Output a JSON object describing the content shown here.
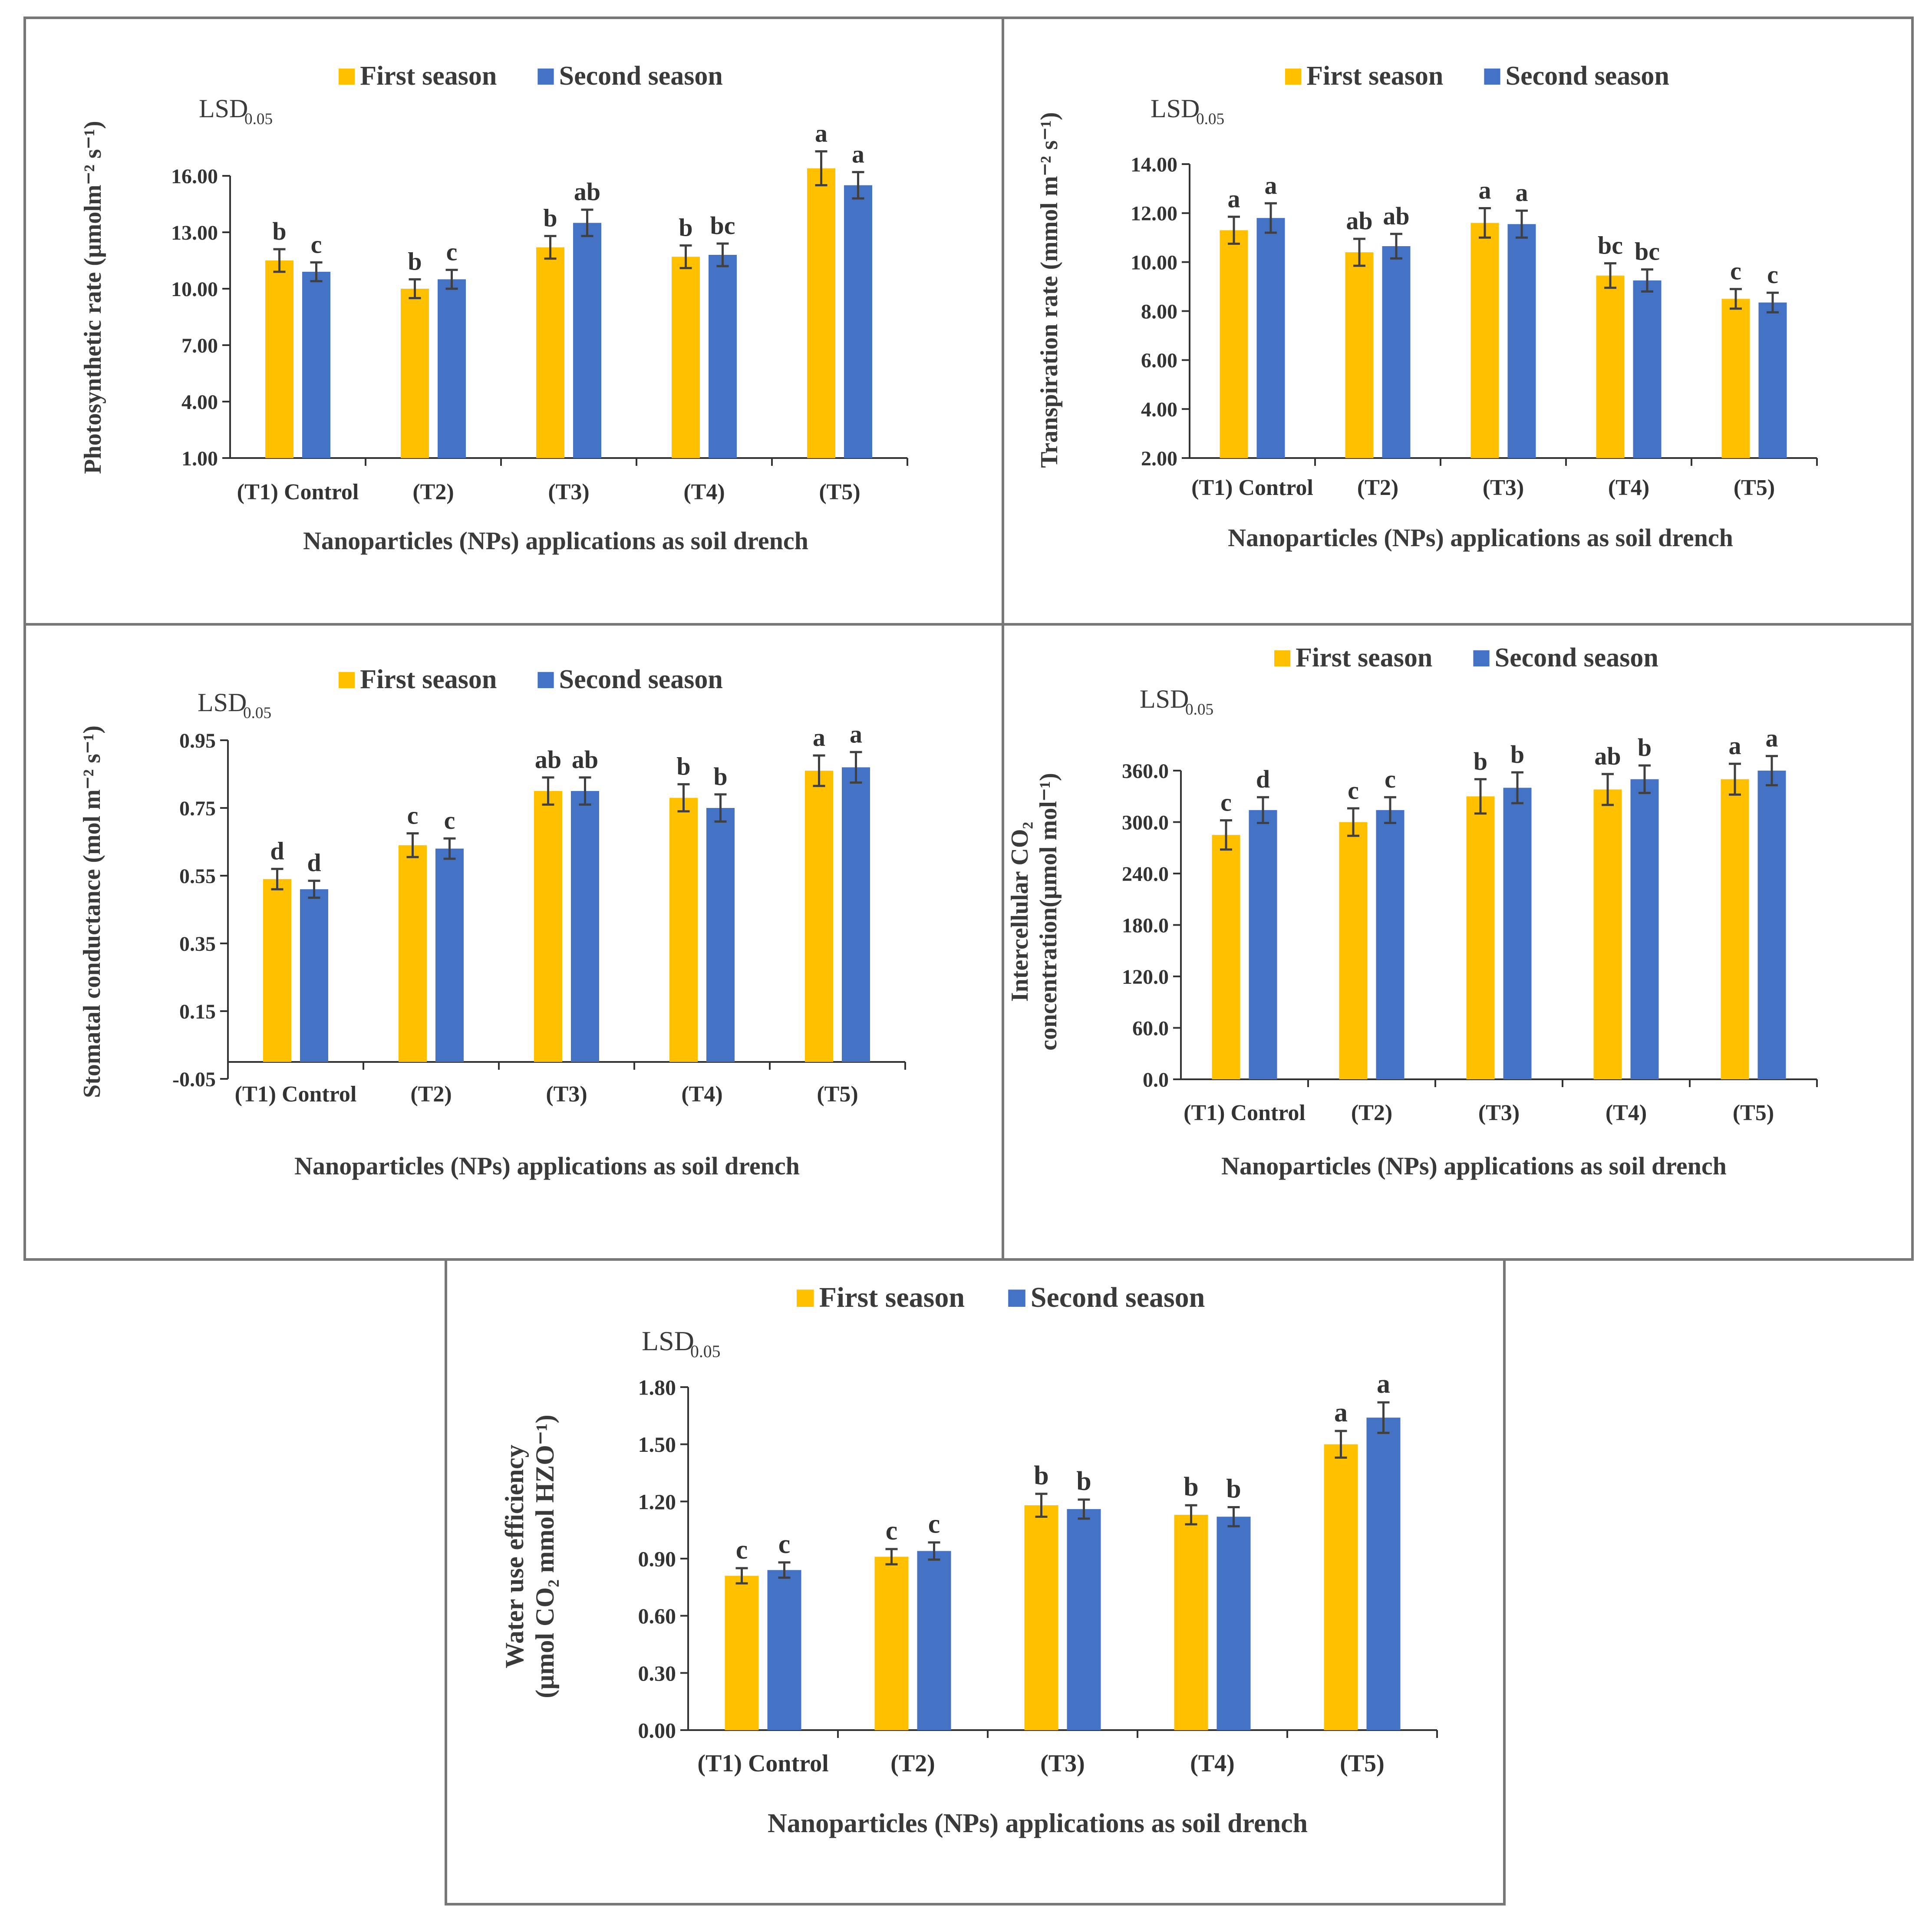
{
  "colors": {
    "first": "#FFC000",
    "second": "#4472C4",
    "axis": "#333333",
    "panel_border": "#777777",
    "errorbar": "#404040"
  },
  "legend": {
    "first": "First season",
    "second": "Second season"
  },
  "lsd": {
    "main": "LSD",
    "sub": "0.05"
  },
  "chart_data": [
    {
      "type": "bar",
      "categories": [
        "(T1) Control",
        "(T2)",
        "(T3)",
        "(T4)",
        "(T5)"
      ],
      "ylabel_lines": [
        "Photosynthetic rate (μmolm⁻² s⁻¹)"
      ],
      "xlabel": "Nanoparticles (NPs) applications  as soil drench",
      "yaxis": {
        "min": 1,
        "max": 16,
        "step": 3,
        "decimals": 2,
        "floor": 1
      },
      "series": [
        {
          "name": "First season",
          "values": [
            11.5,
            10.0,
            12.2,
            11.7,
            16.4
          ],
          "errors": [
            0.6,
            0.5,
            0.6,
            0.6,
            0.9
          ],
          "letters": [
            "b",
            "b",
            "b",
            "b",
            "a"
          ]
        },
        {
          "name": "Second season",
          "values": [
            10.9,
            10.5,
            13.5,
            11.8,
            15.5
          ],
          "errors": [
            0.5,
            0.5,
            0.7,
            0.6,
            0.7
          ],
          "letters": [
            "c",
            "c",
            "ab",
            "bc",
            "a"
          ]
        }
      ]
    },
    {
      "type": "bar",
      "categories": [
        "(T1) Control",
        "(T2)",
        "(T3)",
        "(T4)",
        "(T5)"
      ],
      "ylabel_lines": [
        "Transpiration  rate (mmol m⁻² s⁻¹)"
      ],
      "xlabel": "Nanoparticles (NPs) applications  as soil drench",
      "yaxis": {
        "min": 2,
        "max": 14,
        "step": 2,
        "decimals": 2,
        "floor": 2
      },
      "series": [
        {
          "name": "First season",
          "values": [
            11.3,
            10.4,
            11.6,
            9.45,
            8.5
          ],
          "errors": [
            0.55,
            0.55,
            0.6,
            0.5,
            0.4
          ],
          "letters": [
            "a",
            "ab",
            "a",
            "bc",
            "c"
          ]
        },
        {
          "name": "Second season",
          "values": [
            11.8,
            10.65,
            11.55,
            9.25,
            8.35
          ],
          "errors": [
            0.6,
            0.5,
            0.55,
            0.45,
            0.4
          ],
          "letters": [
            "a",
            "ab",
            "a",
            "bc",
            "c"
          ]
        }
      ]
    },
    {
      "type": "bar",
      "categories": [
        "(T1) Control",
        "(T2)",
        "(T3)",
        "(T4)",
        "(T5)"
      ],
      "ylabel_lines": [
        "Stomatal conductance (mol m⁻² s⁻¹)"
      ],
      "xlabel": "Nanoparticles (NPs) applications  as soil drench",
      "yaxis": {
        "min": -0.05,
        "max": 0.95,
        "step": 0.2,
        "decimals": 2,
        "floor": 0
      },
      "series": [
        {
          "name": "First season",
          "values": [
            0.54,
            0.64,
            0.8,
            0.78,
            0.86
          ],
          "errors": [
            0.03,
            0.035,
            0.04,
            0.04,
            0.045
          ],
          "letters": [
            "d",
            "c",
            "ab",
            "b",
            "a"
          ]
        },
        {
          "name": "Second season",
          "values": [
            0.51,
            0.63,
            0.8,
            0.75,
            0.87
          ],
          "errors": [
            0.025,
            0.03,
            0.04,
            0.04,
            0.045
          ],
          "letters": [
            "d",
            "c",
            "ab",
            "b",
            "a"
          ]
        }
      ]
    },
    {
      "type": "bar",
      "categories": [
        "(T1) Control",
        "(T2)",
        "(T3)",
        "(T4)",
        "(T5)"
      ],
      "ylabel_lines": [
        "Intercellular  CO₂",
        "concentration(μmol mol⁻¹)"
      ],
      "xlabel": "Nanoparticles (NPs) applications  as soil drench",
      "yaxis": {
        "min": 0,
        "max": 360,
        "step": 60,
        "decimals": 1,
        "floor": 0
      },
      "series": [
        {
          "name": "First season",
          "values": [
            285,
            300,
            330,
            338,
            350
          ],
          "errors": [
            17,
            16,
            20,
            18,
            18
          ],
          "letters": [
            "c",
            "c",
            "b",
            "ab",
            "a"
          ]
        },
        {
          "name": "Second season",
          "values": [
            314,
            314,
            340,
            350,
            360
          ],
          "errors": [
            15,
            15,
            18,
            16,
            17
          ],
          "letters": [
            "d",
            "c",
            "b",
            "b",
            "a"
          ]
        }
      ]
    },
    {
      "type": "bar",
      "categories": [
        "(T1) Control",
        "(T2)",
        "(T3)",
        "(T4)",
        "(T5)"
      ],
      "ylabel_lines": [
        "Water use efficiency",
        "(μmol CO₂ mmol HZO⁻¹)"
      ],
      "xlabel": "Nanoparticles (NPs) applications  as soil drench",
      "yaxis": {
        "min": 0,
        "max": 1.8,
        "step": 0.3,
        "decimals": 2,
        "floor": 0
      },
      "series": [
        {
          "name": "First season",
          "values": [
            0.81,
            0.91,
            1.18,
            1.13,
            1.5
          ],
          "errors": [
            0.04,
            0.04,
            0.06,
            0.05,
            0.07
          ],
          "letters": [
            "c",
            "c",
            "b",
            "b",
            "a"
          ]
        },
        {
          "name": "Second season",
          "values": [
            0.84,
            0.94,
            1.16,
            1.12,
            1.64
          ],
          "errors": [
            0.04,
            0.045,
            0.05,
            0.05,
            0.08
          ],
          "letters": [
            "c",
            "c",
            "b",
            "b",
            "a"
          ]
        }
      ]
    }
  ]
}
